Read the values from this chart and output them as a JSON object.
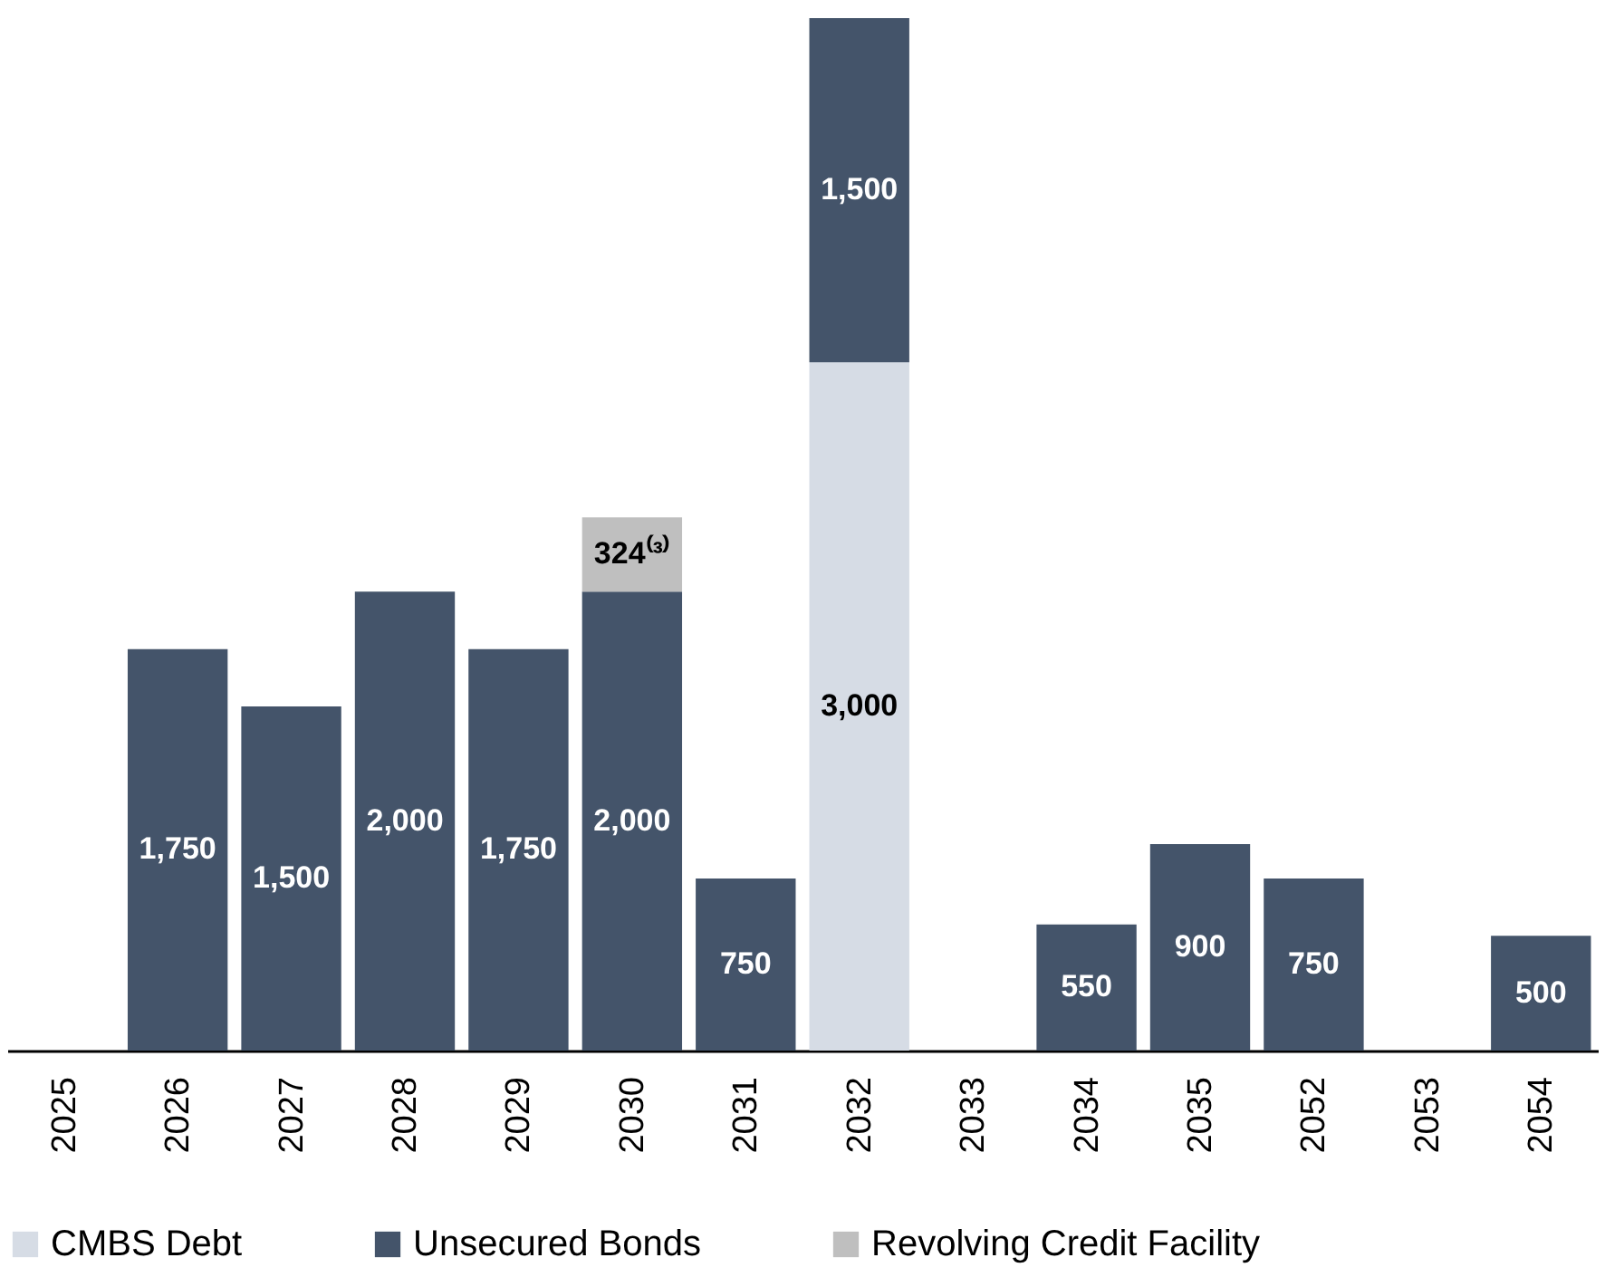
{
  "chart_data": {
    "type": "bar",
    "stacked": true,
    "legend": "bottom",
    "categories": [
      "2025",
      "2026",
      "2027",
      "2028",
      "2029",
      "2030",
      "2031",
      "2032",
      "2033",
      "2034",
      "2035",
      "2052",
      "2053",
      "2054"
    ],
    "series": [
      {
        "name": "CMBS Debt",
        "color": "#d6dce5",
        "values": [
          null,
          null,
          null,
          null,
          null,
          null,
          null,
          3000,
          null,
          null,
          null,
          null,
          null,
          null
        ],
        "value_labels": [
          null,
          null,
          null,
          null,
          null,
          null,
          null,
          "3,000",
          null,
          null,
          null,
          null,
          null,
          null
        ]
      },
      {
        "name": "Unsecured Bonds",
        "color": "#44546a",
        "values": [
          null,
          1750,
          1500,
          2000,
          1750,
          2000,
          750,
          1500,
          null,
          550,
          900,
          750,
          null,
          500
        ],
        "value_labels": [
          null,
          "1,750",
          "1,500",
          "2,000",
          "1,750",
          "2,000",
          "750",
          "1,500",
          null,
          "550",
          "900",
          "750",
          null,
          "500"
        ]
      },
      {
        "name": "Revolving Credit Facility",
        "color": "#bfbfbf",
        "values": [
          null,
          null,
          null,
          null,
          null,
          324,
          null,
          null,
          null,
          null,
          null,
          null,
          null,
          null
        ],
        "value_labels": [
          null,
          null,
          null,
          null,
          null,
          "324⁽³⁾",
          null,
          null,
          null,
          null,
          null,
          null,
          null,
          null
        ]
      }
    ]
  }
}
